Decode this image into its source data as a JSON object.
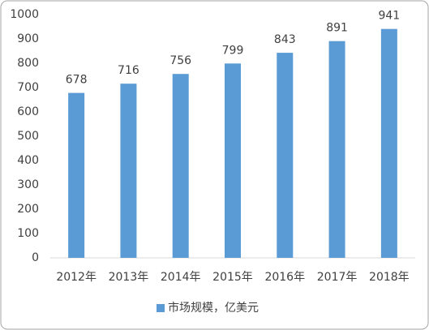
{
  "chart_data": {
    "type": "bar",
    "categories": [
      "2012年",
      "2013年",
      "2014年",
      "2015年",
      "2016年",
      "2017年",
      "2018年"
    ],
    "series": [
      {
        "name": "市场规模，亿美元",
        "color": "#5b9bd5",
        "values": [
          678,
          716,
          756,
          799,
          843,
          891,
          941
        ]
      }
    ],
    "ylim": [
      0,
      1000
    ],
    "yticks": [
      0,
      100,
      200,
      300,
      400,
      500,
      600,
      700,
      800,
      900,
      1000
    ],
    "grid": false,
    "legend": "bottom"
  }
}
